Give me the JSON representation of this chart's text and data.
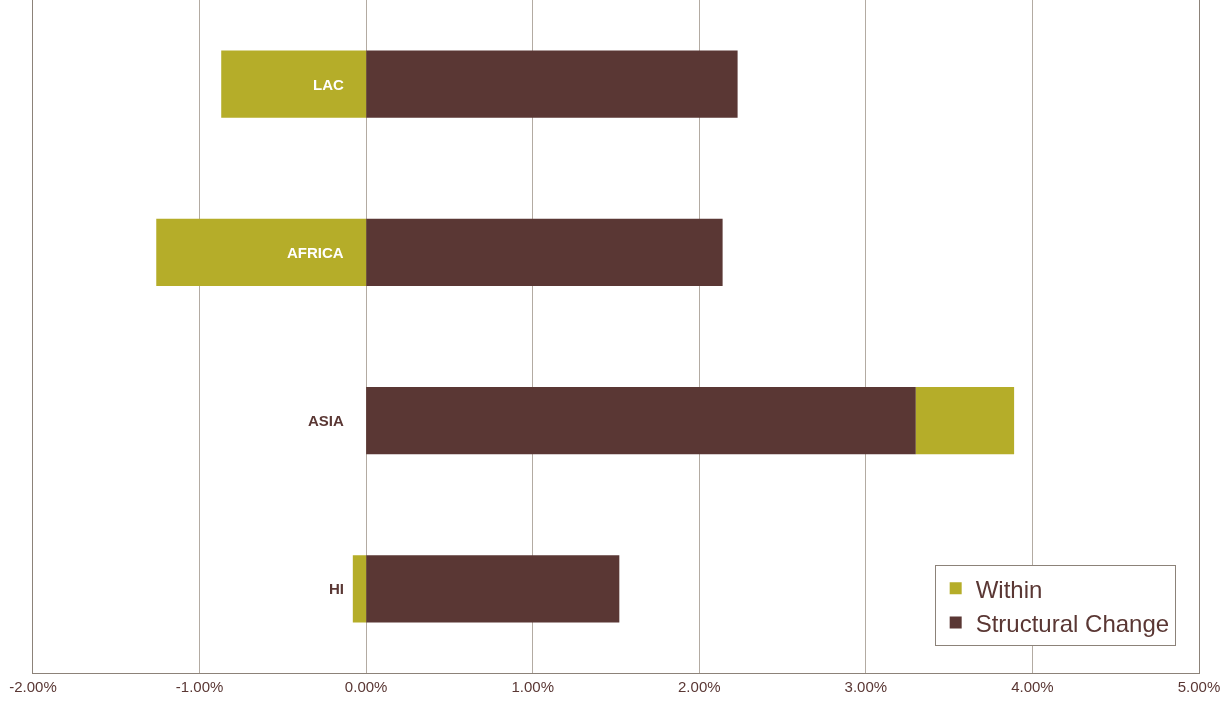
{
  "chart_data": {
    "type": "bar",
    "orientation": "horizontal",
    "stacked": true,
    "categories": [
      "LAC",
      "AFRICA",
      "ASIA",
      "HI"
    ],
    "series": [
      {
        "name": "Structural Change",
        "color": "#5a3734",
        "values": [
          2.23,
          2.14,
          3.3,
          1.52
        ]
      },
      {
        "name": "Within",
        "color": "#b5ad29",
        "values": [
          -0.87,
          -1.26,
          0.59,
          -0.08
        ]
      }
    ],
    "xlim": [
      -2,
      5
    ],
    "xticks": [
      {
        "value": -2,
        "label": "-2.00%"
      },
      {
        "value": -1,
        "label": "-1.00%"
      },
      {
        "value": 0,
        "label": "0.00%"
      },
      {
        "value": 1,
        "label": "1.00%"
      },
      {
        "value": 2,
        "label": "2.00%"
      },
      {
        "value": 3,
        "label": "3.00%"
      },
      {
        "value": 4,
        "label": "4.00%"
      },
      {
        "value": 5,
        "label": "5.00%"
      }
    ],
    "grid": "x",
    "legend": "bottom right"
  }
}
